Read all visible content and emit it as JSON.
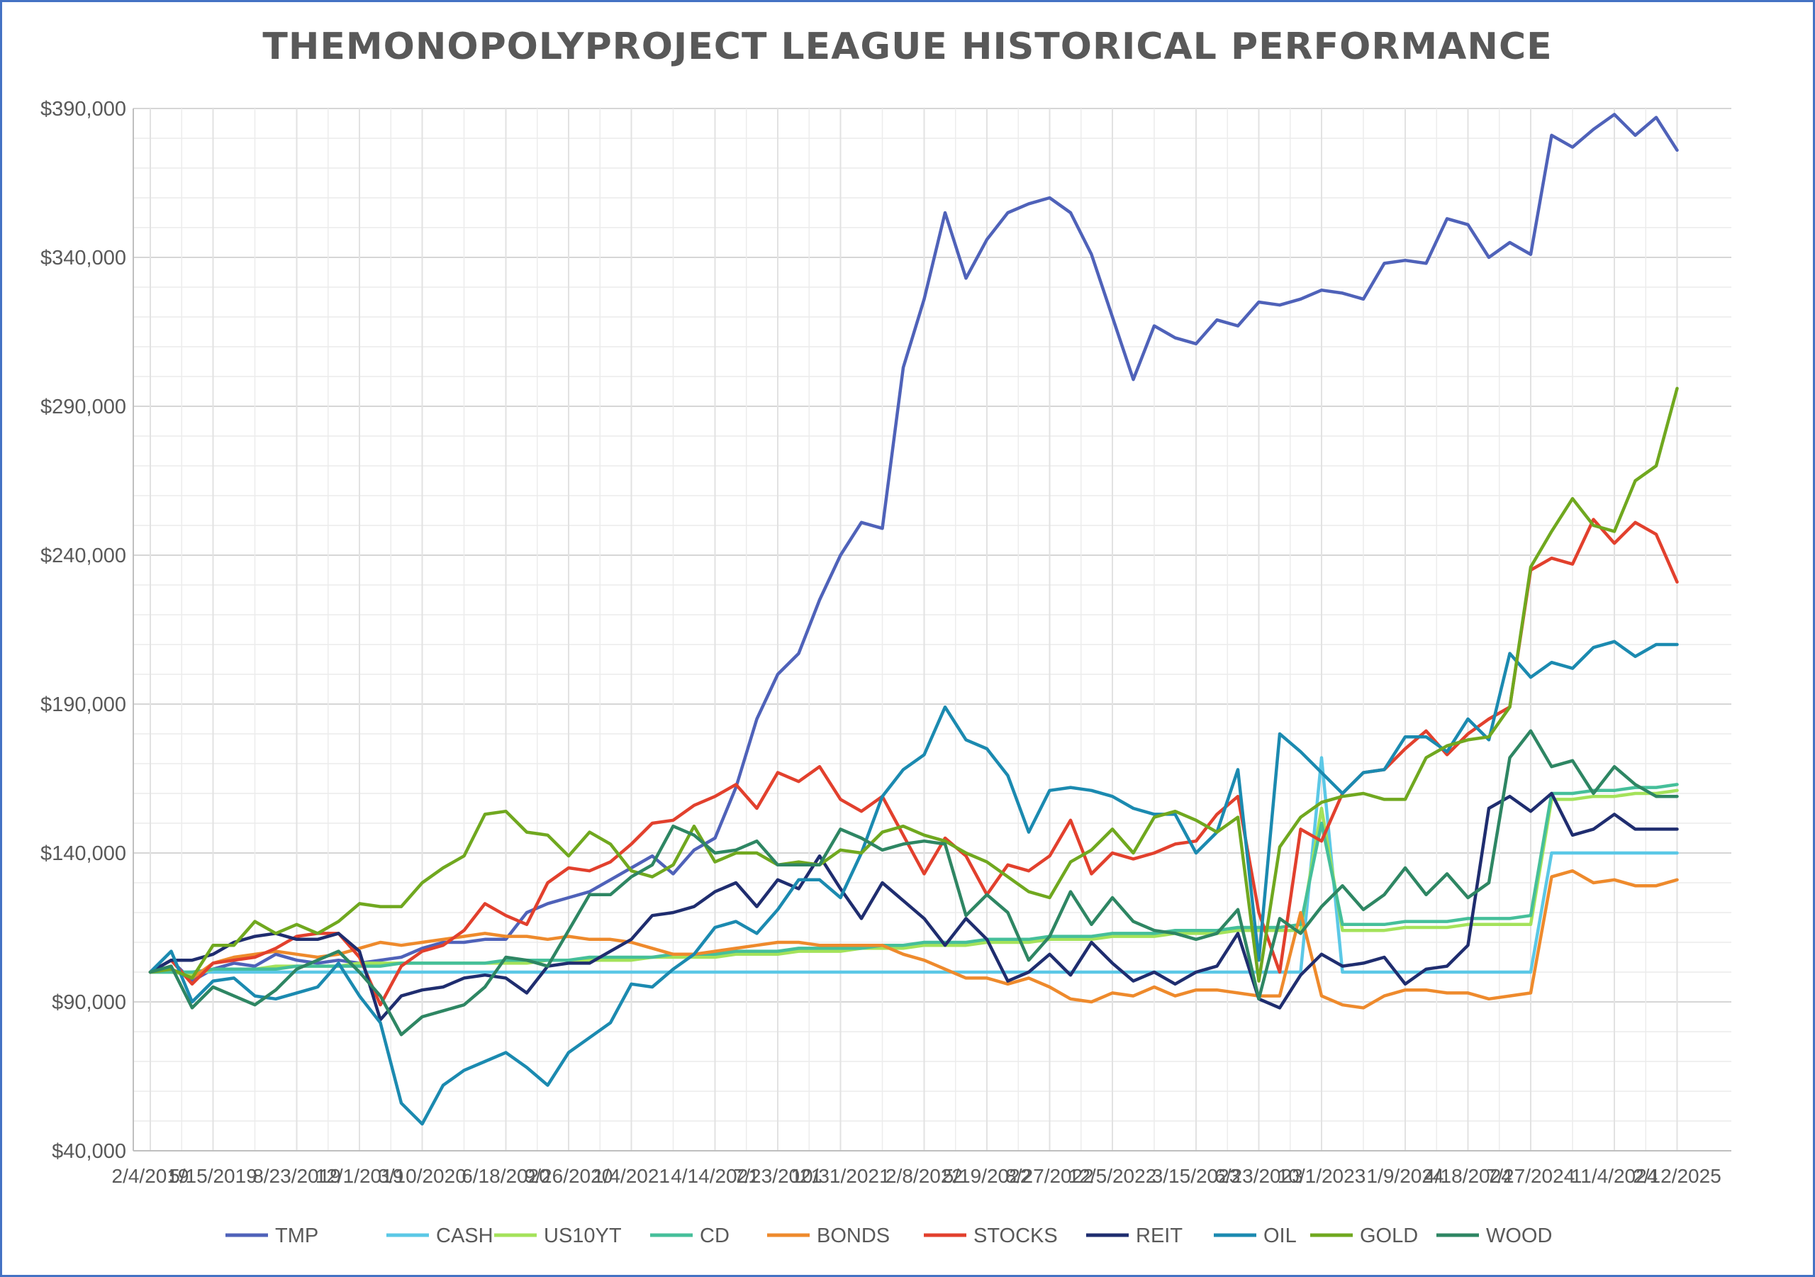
{
  "chart_data": {
    "type": "line",
    "title": "THEMONOPOLYPROJECT LEAGUE HISTORICAL PERFORMANCE",
    "xlabel": "",
    "ylabel": "",
    "ylim": [
      40000,
      390000
    ],
    "y_ticks": [
      "$40,000",
      "$90,000",
      "$140,000",
      "$190,000",
      "$240,000",
      "$290,000",
      "$340,000",
      "$390,000"
    ],
    "y_tick_values": [
      40000,
      90000,
      140000,
      190000,
      240000,
      290000,
      340000,
      390000
    ],
    "x_tick_labels": [
      "2/4/2019",
      "5/15/2019",
      "8/23/2019",
      "12/1/2019",
      "3/10/2020",
      "6/18/2020",
      "9/26/2020",
      "1/4/2021",
      "4/14/2021",
      "7/23/2021",
      "10/31/2021",
      "2/8/2022",
      "5/19/2022",
      "8/27/2022",
      "12/5/2022",
      "3/15/2023",
      "6/23/2023",
      "10/1/2023",
      "1/9/2024",
      "4/18/2024",
      "7/27/2024",
      "11/4/2024",
      "2/12/2025"
    ],
    "grid": true,
    "legend_position": "bottom",
    "x_count": 74,
    "series": [
      {
        "name": "TMP",
        "color": "#4f62b9",
        "values": [
          100000,
          104000,
          97000,
          101000,
          103000,
          102000,
          106000,
          104000,
          103000,
          104000,
          103000,
          104000,
          105000,
          108000,
          110000,
          110000,
          111000,
          111000,
          120000,
          123000,
          125000,
          127000,
          131000,
          135000,
          139000,
          133000,
          141000,
          145000,
          162000,
          185000,
          200000,
          207000,
          225000,
          240000,
          251000,
          249000,
          303000,
          326000,
          355000,
          333000,
          346000,
          355000,
          358000,
          360000,
          355000,
          341000,
          320000,
          299000,
          317000,
          313000,
          311000,
          319000,
          317000,
          325000,
          324000,
          326000,
          329000,
          328000,
          326000,
          338000,
          339000,
          338000,
          353000,
          351000,
          340000,
          345000,
          341000,
          381000,
          377000,
          383000,
          388000,
          381000,
          387000,
          376000
        ]
      },
      {
        "name": "CASH",
        "color": "#5bc8e6",
        "values": [
          100000,
          100000,
          100000,
          100000,
          100000,
          100000,
          100000,
          100000,
          100000,
          100000,
          100000,
          100000,
          100000,
          100000,
          100000,
          100000,
          100000,
          100000,
          100000,
          100000,
          100000,
          100000,
          100000,
          100000,
          100000,
          100000,
          100000,
          100000,
          100000,
          100000,
          100000,
          100000,
          100000,
          100000,
          100000,
          100000,
          100000,
          100000,
          100000,
          100000,
          100000,
          100000,
          100000,
          100000,
          100000,
          100000,
          100000,
          100000,
          100000,
          100000,
          100000,
          100000,
          100000,
          100000,
          100000,
          100000,
          172000,
          100000,
          100000,
          100000,
          100000,
          100000,
          100000,
          100000,
          100000,
          100000,
          100000,
          140000,
          140000,
          140000,
          140000,
          140000,
          140000,
          140000
        ]
      },
      {
        "name": "US10YT",
        "color": "#a4e25a",
        "values": [
          100000,
          100000,
          99000,
          101000,
          101000,
          101000,
          102000,
          102000,
          102000,
          102000,
          103000,
          103000,
          103000,
          103000,
          103000,
          103000,
          103000,
          103000,
          103000,
          104000,
          104000,
          104000,
          104000,
          104000,
          105000,
          105000,
          105000,
          105000,
          106000,
          106000,
          106000,
          107000,
          107000,
          107000,
          108000,
          108000,
          108000,
          109000,
          109000,
          109000,
          110000,
          110000,
          110000,
          111000,
          111000,
          111000,
          112000,
          112000,
          112000,
          113000,
          113000,
          113000,
          114000,
          114000,
          114000,
          114000,
          155000,
          114000,
          114000,
          114000,
          115000,
          115000,
          115000,
          116000,
          116000,
          116000,
          116000,
          158000,
          158000,
          159000,
          159000,
          160000,
          160000,
          161000
        ]
      },
      {
        "name": "CD",
        "color": "#45bf9a",
        "values": [
          100000,
          100000,
          100000,
          101000,
          101000,
          101000,
          101000,
          102000,
          102000,
          102000,
          102000,
          102000,
          103000,
          103000,
          103000,
          103000,
          103000,
          104000,
          104000,
          104000,
          104000,
          105000,
          105000,
          105000,
          105000,
          106000,
          106000,
          106000,
          107000,
          107000,
          107000,
          108000,
          108000,
          108000,
          108000,
          109000,
          109000,
          110000,
          110000,
          110000,
          111000,
          111000,
          111000,
          112000,
          112000,
          112000,
          113000,
          113000,
          113000,
          114000,
          114000,
          114000,
          115000,
          115000,
          115000,
          116000,
          150000,
          116000,
          116000,
          116000,
          117000,
          117000,
          117000,
          118000,
          118000,
          118000,
          119000,
          160000,
          160000,
          161000,
          161000,
          162000,
          162000,
          163000
        ]
      },
      {
        "name": "BONDS",
        "color": "#ee8a2c",
        "values": [
          100000,
          101000,
          98000,
          103000,
          105000,
          106000,
          107000,
          106000,
          105000,
          106000,
          108000,
          110000,
          109000,
          110000,
          111000,
          112000,
          113000,
          112000,
          112000,
          111000,
          112000,
          111000,
          111000,
          110000,
          108000,
          106000,
          106000,
          107000,
          108000,
          109000,
          110000,
          110000,
          109000,
          109000,
          109000,
          109000,
          106000,
          104000,
          101000,
          98000,
          98000,
          96000,
          98000,
          95000,
          91000,
          90000,
          93000,
          92000,
          95000,
          92000,
          94000,
          94000,
          93000,
          92000,
          92000,
          120000,
          92000,
          89000,
          88000,
          92000,
          94000,
          94000,
          93000,
          93000,
          91000,
          92000,
          93000,
          132000,
          134000,
          130000,
          131000,
          129000,
          129000,
          131000
        ]
      },
      {
        "name": "STOCKS",
        "color": "#e2402d",
        "values": [
          100000,
          104000,
          96000,
          103000,
          104000,
          105000,
          108000,
          112000,
          113000,
          113000,
          105000,
          89000,
          102000,
          107000,
          109000,
          114000,
          123000,
          119000,
          116000,
          130000,
          135000,
          134000,
          137000,
          143000,
          150000,
          151000,
          156000,
          159000,
          163000,
          155000,
          167000,
          164000,
          169000,
          158000,
          154000,
          159000,
          146000,
          133000,
          145000,
          139000,
          126000,
          136000,
          134000,
          139000,
          151000,
          133000,
          140000,
          138000,
          140000,
          143000,
          144000,
          153000,
          159000,
          120000,
          100000,
          148000,
          144000,
          160000,
          167000,
          168000,
          175000,
          181000,
          173000,
          180000,
          185000,
          189000,
          235000,
          239000,
          237000,
          252000,
          244000,
          251000,
          247000,
          231000
        ]
      },
      {
        "name": "REIT",
        "color": "#1f2d6f",
        "values": [
          100000,
          104000,
          104000,
          106000,
          110000,
          112000,
          113000,
          111000,
          111000,
          113000,
          107000,
          84000,
          92000,
          94000,
          95000,
          98000,
          99000,
          98000,
          93000,
          102000,
          103000,
          103000,
          107000,
          111000,
          119000,
          120000,
          122000,
          127000,
          130000,
          122000,
          131000,
          128000,
          139000,
          128000,
          118000,
          130000,
          124000,
          118000,
          109000,
          118000,
          111000,
          97000,
          100000,
          106000,
          99000,
          110000,
          103000,
          97000,
          100000,
          96000,
          100000,
          102000,
          113000,
          91000,
          88000,
          99000,
          106000,
          102000,
          103000,
          105000,
          96000,
          101000,
          102000,
          109000,
          155000,
          159000,
          154000,
          160000,
          146000,
          148000,
          153000,
          148000,
          148000,
          148000
        ]
      },
      {
        "name": "OIL",
        "color": "#1b8ab0",
        "values": [
          100000,
          107000,
          90000,
          97000,
          98000,
          92000,
          91000,
          93000,
          95000,
          103000,
          92000,
          83000,
          56000,
          49000,
          62000,
          67000,
          70000,
          73000,
          68000,
          62000,
          73000,
          78000,
          83000,
          96000,
          95000,
          101000,
          106000,
          115000,
          117000,
          113000,
          121000,
          131000,
          131000,
          125000,
          140000,
          159000,
          168000,
          173000,
          189000,
          178000,
          175000,
          166000,
          147000,
          161000,
          162000,
          161000,
          159000,
          155000,
          153000,
          153000,
          140000,
          147000,
          168000,
          104000,
          180000,
          174000,
          167000,
          160000,
          167000,
          168000,
          179000,
          179000,
          174000,
          185000,
          178000,
          207000,
          199000,
          204000,
          202000,
          209000,
          211000,
          206000,
          210000,
          210000
        ]
      },
      {
        "name": "GOLD",
        "color": "#70a81f",
        "values": [
          100000,
          101000,
          98000,
          109000,
          109000,
          117000,
          113000,
          116000,
          113000,
          117000,
          123000,
          122000,
          122000,
          130000,
          135000,
          139000,
          153000,
          154000,
          147000,
          146000,
          139000,
          147000,
          143000,
          134000,
          132000,
          136000,
          149000,
          137000,
          140000,
          140000,
          136000,
          137000,
          136000,
          141000,
          140000,
          147000,
          149000,
          146000,
          144000,
          140000,
          137000,
          132000,
          127000,
          125000,
          137000,
          141000,
          148000,
          140000,
          152000,
          154000,
          151000,
          147000,
          152000,
          97000,
          142000,
          152000,
          157000,
          159000,
          160000,
          158000,
          158000,
          172000,
          176000,
          178000,
          179000,
          189000,
          236000,
          248000,
          259000,
          250000,
          248000,
          265000,
          270000,
          296000
        ]
      },
      {
        "name": "WOOD",
        "color": "#2e8663",
        "values": [
          100000,
          102000,
          88000,
          95000,
          92000,
          89000,
          94000,
          101000,
          104000,
          107000,
          100000,
          92000,
          79000,
          85000,
          87000,
          89000,
          95000,
          105000,
          104000,
          102000,
          114000,
          126000,
          126000,
          132000,
          136000,
          149000,
          146000,
          140000,
          141000,
          144000,
          136000,
          136000,
          136000,
          148000,
          145000,
          141000,
          143000,
          144000,
          143000,
          119000,
          126000,
          120000,
          104000,
          112000,
          127000,
          116000,
          125000,
          117000,
          114000,
          113000,
          111000,
          113000,
          121000,
          91000,
          118000,
          113000,
          122000,
          129000,
          121000,
          126000,
          135000,
          126000,
          133000,
          125000,
          130000,
          172000,
          181000,
          169000,
          171000,
          160000,
          169000,
          163000,
          159000,
          159000
        ]
      }
    ]
  }
}
